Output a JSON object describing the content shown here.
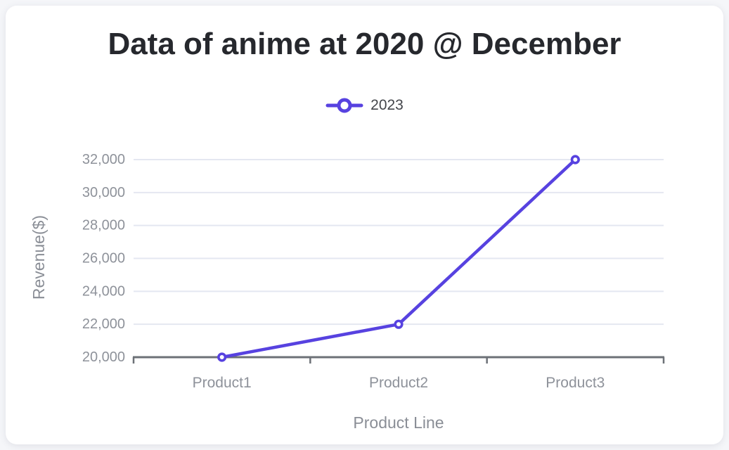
{
  "palette": {
    "page_background": "#f5f6f9",
    "card_background": "#ffffff",
    "title_text": "#26282d",
    "legend_text": "#44464b"
  },
  "chart_data": {
    "type": "line",
    "title": "Data of anime at 2020 @ December",
    "xlabel": "Product Line",
    "ylabel": "Revenue($)",
    "categories": [
      "Product1",
      "Product2",
      "Product3"
    ],
    "series": [
      {
        "name": "2023",
        "values": [
          20000,
          22000,
          32000
        ]
      }
    ],
    "ylim": [
      20000,
      32000
    ],
    "yticks": [
      {
        "value": 20000,
        "label": "20,000"
      },
      {
        "value": 22000,
        "label": "22,000"
      },
      {
        "value": 24000,
        "label": "24,000"
      },
      {
        "value": 26000,
        "label": "26,000"
      },
      {
        "value": 28000,
        "label": "28,000"
      },
      {
        "value": 30000,
        "label": "30,000"
      },
      {
        "value": 32000,
        "label": "32,000"
      }
    ],
    "grid": true,
    "legend_position": "top",
    "marker": "open-circle",
    "colors": {
      "line": "#5742e0",
      "grid": "#e4e7f1",
      "axis": "#6d7177",
      "tick_text": "#8e929a",
      "axis_title_text": "#8a8e96"
    }
  }
}
